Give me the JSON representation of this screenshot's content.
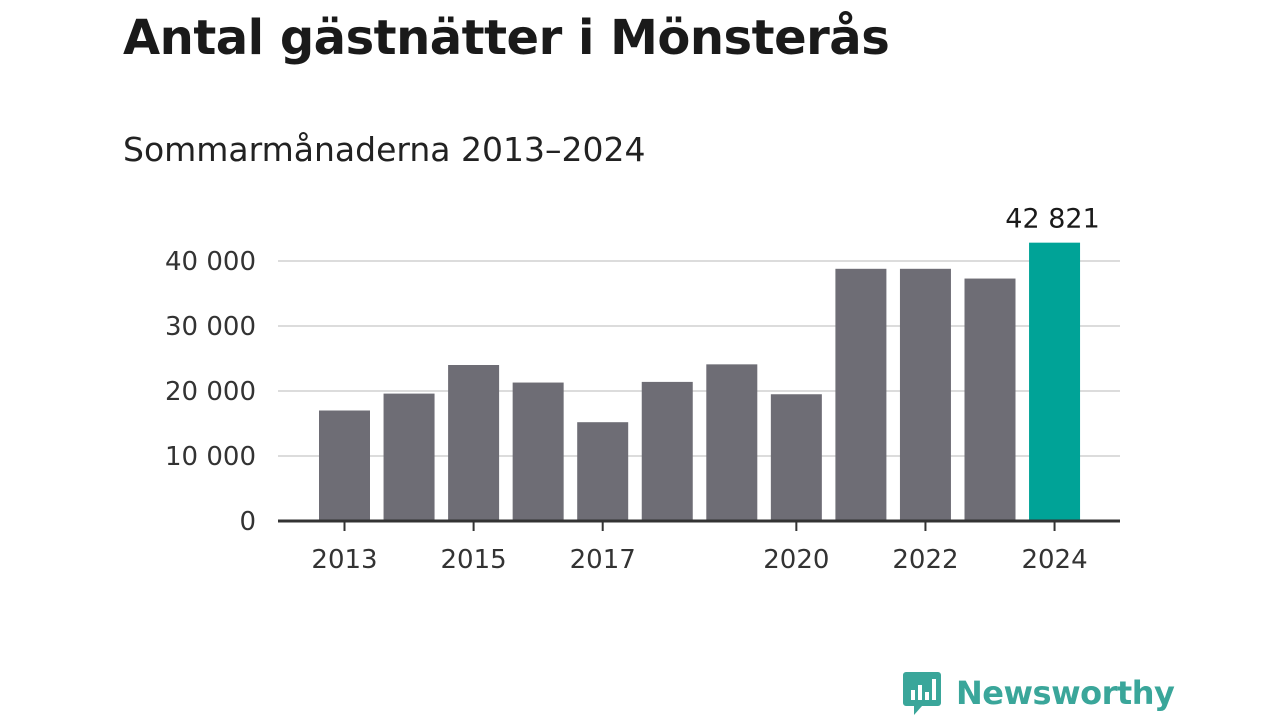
{
  "title": "Antal gästnätter i Mönsterås",
  "subtitle": "Sommarmånaderna 2013–2024",
  "brand": {
    "name": "Newsworthy",
    "color": "#3aa69a"
  },
  "colors": {
    "bar": "#6e6d75",
    "highlight": "#00a397",
    "grid": "#dcdcdc",
    "axis": "#333333"
  },
  "chart_data": {
    "type": "bar",
    "categories": [
      "2013",
      "2014",
      "2015",
      "2016",
      "2017",
      "2018",
      "2019",
      "2020",
      "2021",
      "2022",
      "2023",
      "2024"
    ],
    "values": [
      17000,
      19600,
      24000,
      21300,
      15200,
      21400,
      24100,
      19500,
      38800,
      38800,
      37300,
      42821
    ],
    "x_tick_labels": [
      "2013",
      "2015",
      "2017",
      "2020",
      "2022",
      "2024"
    ],
    "y_ticks": [
      0,
      10000,
      20000,
      30000,
      40000
    ],
    "y_tick_labels": [
      "0",
      "10 000",
      "20 000",
      "30 000",
      "40 000"
    ],
    "ylim": [
      0,
      43000
    ],
    "grid": true,
    "highlight_index": 11,
    "data_labels": [
      {
        "index": 11,
        "text": "42 821"
      }
    ]
  }
}
